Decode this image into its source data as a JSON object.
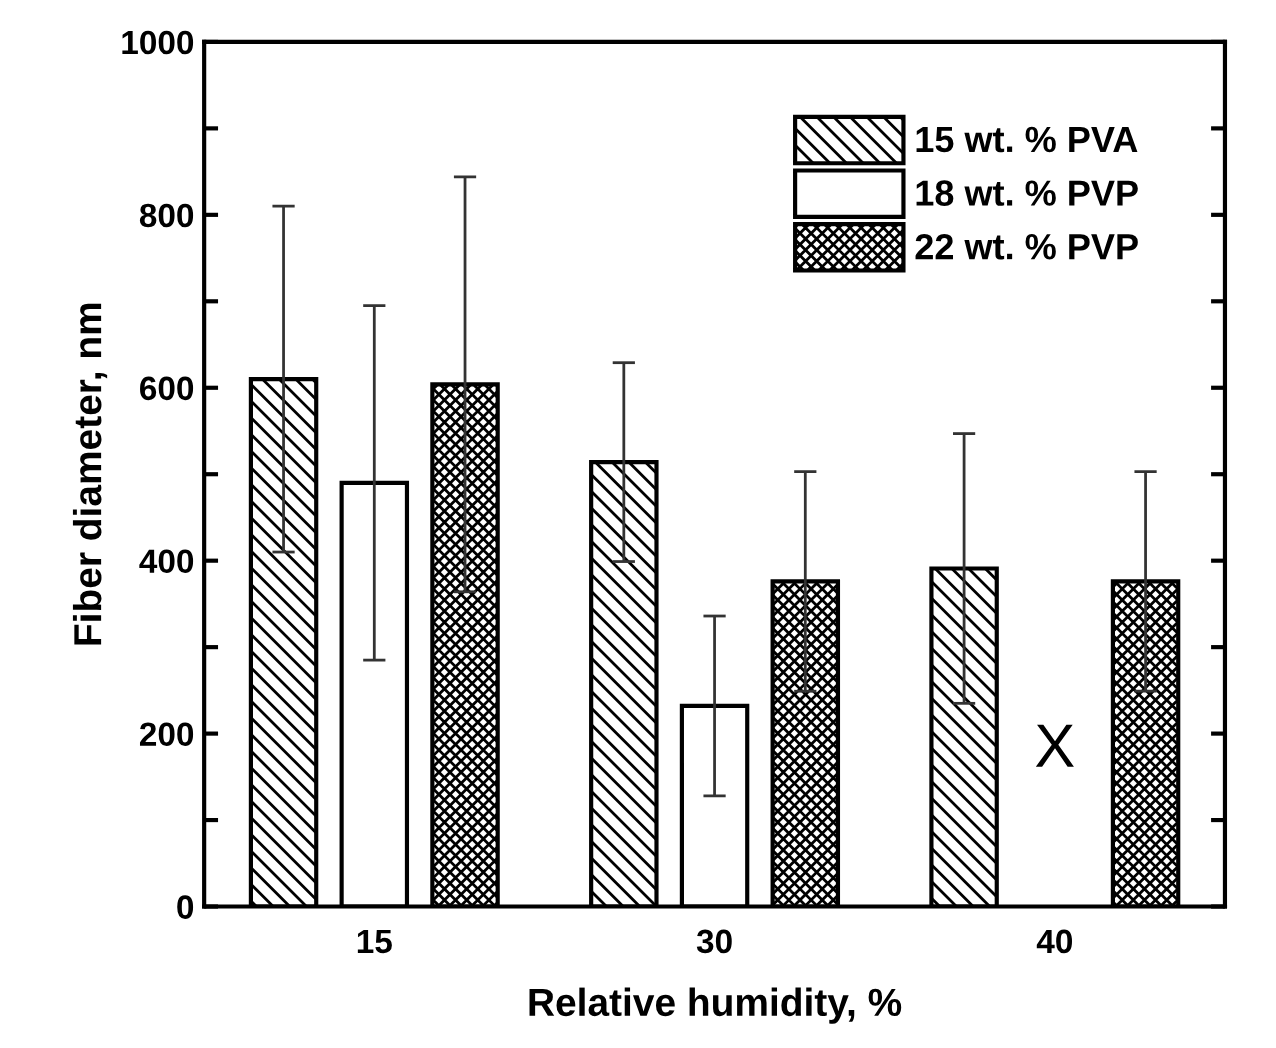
{
  "chart_data": {
    "type": "bar",
    "xlabel": "Relative humidity, %",
    "ylabel": "Fiber diameter, nm",
    "categories": [
      "15",
      "30",
      "40"
    ],
    "series": [
      {
        "name": "15 wt. % PVA",
        "color": "#000000",
        "values": [
          610,
          514,
          391
        ],
        "errors": [
          200,
          115,
          156
        ]
      },
      {
        "name": "18 wt. % PVP",
        "color": "#ffffff",
        "values": [
          490,
          232,
          null
        ],
        "errors": [
          205,
          104,
          null
        ]
      },
      {
        "name": "22 wt. % PVP",
        "color": "#000000",
        "values": [
          604,
          376,
          376
        ],
        "errors": [
          240,
          127,
          127
        ]
      }
    ],
    "annotations": [
      "X"
    ],
    "ylim": [
      0,
      1000
    ],
    "yticks": [
      0,
      {
        "value": 100,
        "label": null
      },
      200,
      {
        "value": 300,
        "label": null
      },
      400,
      {
        "value": 500,
        "label": null
      },
      600,
      {
        "value": 700,
        "label": null
      },
      800,
      {
        "value": 900,
        "label": null
      },
      1000
    ],
    "grid": false,
    "legend": "top right"
  }
}
